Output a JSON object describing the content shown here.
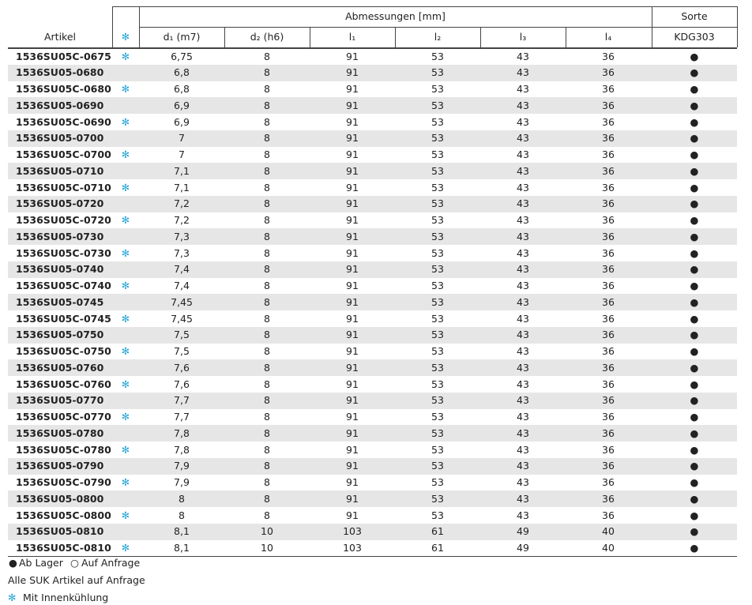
{
  "table": {
    "header": {
      "article": "Artikel",
      "cooling": "✻",
      "group": "Abmessungen [mm]",
      "grade": "Sorte",
      "columns": [
        "d₁ (m7)",
        "d₂ (h6)",
        "l₁",
        "l₂",
        "l₃",
        "l₄"
      ],
      "grade_name": "KDG303"
    },
    "rows": [
      [
        "1536SU05C-0675",
        "✻",
        "6,75",
        "8",
        "91",
        "53",
        "43",
        "36",
        "●"
      ],
      [
        "1536SU05-0680",
        null,
        "6,8",
        "8",
        "91",
        "53",
        "43",
        "36",
        "●"
      ],
      [
        "1536SU05C-0680",
        "✻",
        "6,8",
        "8",
        "91",
        "53",
        "43",
        "36",
        "●"
      ],
      [
        "1536SU05-0690",
        null,
        "6,9",
        "8",
        "91",
        "53",
        "43",
        "36",
        "●"
      ],
      [
        "1536SU05C-0690",
        "✻",
        "6,9",
        "8",
        "91",
        "53",
        "43",
        "36",
        "●"
      ],
      [
        "1536SU05-0700",
        null,
        "7",
        "8",
        "91",
        "53",
        "43",
        "36",
        "●"
      ],
      [
        "1536SU05C-0700",
        "✻",
        "7",
        "8",
        "91",
        "53",
        "43",
        "36",
        "●"
      ],
      [
        "1536SU05-0710",
        null,
        "7,1",
        "8",
        "91",
        "53",
        "43",
        "36",
        "●"
      ],
      [
        "1536SU05C-0710",
        "✻",
        "7,1",
        "8",
        "91",
        "53",
        "43",
        "36",
        "●"
      ],
      [
        "1536SU05-0720",
        null,
        "7,2",
        "8",
        "91",
        "53",
        "43",
        "36",
        "●"
      ],
      [
        "1536SU05C-0720",
        "✻",
        "7,2",
        "8",
        "91",
        "53",
        "43",
        "36",
        "●"
      ],
      [
        "1536SU05-0730",
        null,
        "7,3",
        "8",
        "91",
        "53",
        "43",
        "36",
        "●"
      ],
      [
        "1536SU05C-0730",
        "✻",
        "7,3",
        "8",
        "91",
        "53",
        "43",
        "36",
        "●"
      ],
      [
        "1536SU05-0740",
        null,
        "7,4",
        "8",
        "91",
        "53",
        "43",
        "36",
        "●"
      ],
      [
        "1536SU05C-0740",
        "✻",
        "7,4",
        "8",
        "91",
        "53",
        "43",
        "36",
        "●"
      ],
      [
        "1536SU05-0745",
        null,
        "7,45",
        "8",
        "91",
        "53",
        "43",
        "36",
        "●"
      ],
      [
        "1536SU05C-0745",
        "✻",
        "7,45",
        "8",
        "91",
        "53",
        "43",
        "36",
        "●"
      ],
      [
        "1536SU05-0750",
        null,
        "7,5",
        "8",
        "91",
        "53",
        "43",
        "36",
        "●"
      ],
      [
        "1536SU05C-0750",
        "✻",
        "7,5",
        "8",
        "91",
        "53",
        "43",
        "36",
        "●"
      ],
      [
        "1536SU05-0760",
        null,
        "7,6",
        "8",
        "91",
        "53",
        "43",
        "36",
        "●"
      ],
      [
        "1536SU05C-0760",
        "✻",
        "7,6",
        "8",
        "91",
        "53",
        "43",
        "36",
        "●"
      ],
      [
        "1536SU05-0770",
        null,
        "7,7",
        "8",
        "91",
        "53",
        "43",
        "36",
        "●"
      ],
      [
        "1536SU05C-0770",
        "✻",
        "7,7",
        "8",
        "91",
        "53",
        "43",
        "36",
        "●"
      ],
      [
        "1536SU05-0780",
        null,
        "7,8",
        "8",
        "91",
        "53",
        "43",
        "36",
        "●"
      ],
      [
        "1536SU05C-0780",
        "✻",
        "7,8",
        "8",
        "91",
        "53",
        "43",
        "36",
        "●"
      ],
      [
        "1536SU05-0790",
        null,
        "7,9",
        "8",
        "91",
        "53",
        "43",
        "36",
        "●"
      ],
      [
        "1536SU05C-0790",
        "✻",
        "7,9",
        "8",
        "91",
        "53",
        "43",
        "36",
        "●"
      ],
      [
        "1536SU05-0800",
        null,
        "8",
        "8",
        "91",
        "53",
        "43",
        "36",
        "●"
      ],
      [
        "1536SU05C-0800",
        "✻",
        "8",
        "8",
        "91",
        "53",
        "43",
        "36",
        "●"
      ],
      [
        "1536SU05-0810",
        null,
        "8,1",
        "10",
        "103",
        "61",
        "49",
        "40",
        "●"
      ],
      [
        "1536SU05C-0810",
        "✻",
        "8,1",
        "10",
        "103",
        "61",
        "49",
        "40",
        "●"
      ]
    ]
  },
  "footer": {
    "stock": [
      {
        "symbol": "●",
        "label": "Ab Lager"
      },
      {
        "symbol": "○",
        "label": "Auf Anfrage"
      }
    ],
    "note": "Alle SUK Artikel auf Anfrage",
    "cooling": {
      "symbol": "✻",
      "label": "Mit Innenkühlung"
    }
  }
}
